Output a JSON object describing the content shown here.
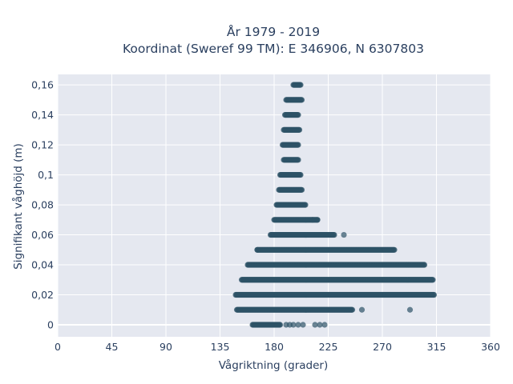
{
  "chart_data": {
    "type": "scatter",
    "title_line1": "År 1979 - 2019",
    "title_line2": "Koordinat (Sweref 99 TM): E 346906, N 6307803",
    "xlabel": "Vågriktning (grader)",
    "ylabel": "Signifikant våghöjd (m)",
    "xlim": [
      0,
      360
    ],
    "ylim": [
      -0.008,
      0.167
    ],
    "x_ticks": [
      0,
      45,
      90,
      135,
      180,
      225,
      270,
      315,
      360
    ],
    "x_tick_labels": [
      "0",
      "45",
      "90",
      "135",
      "180",
      "225",
      "270",
      "315",
      "360"
    ],
    "y_ticks": [
      0,
      0.02,
      0.04,
      0.06,
      0.08,
      0.1,
      0.12,
      0.14,
      0.16
    ],
    "y_tick_labels": [
      "0",
      "0,02",
      "0,04",
      "0,06",
      "0,08",
      "0,1",
      "0,12",
      "0,14",
      "0,16"
    ],
    "grid": true,
    "colors": {
      "plot_bg": "#e5e8f0",
      "grid": "#ffffff",
      "marker": "#2e5266",
      "text": "#2a3f5f"
    },
    "bands": [
      {
        "y": 0.16,
        "x_min": 196,
        "x_max": 202
      },
      {
        "y": 0.15,
        "x_min": 190,
        "x_max": 203
      },
      {
        "y": 0.14,
        "x_min": 189,
        "x_max": 200
      },
      {
        "y": 0.13,
        "x_min": 188,
        "x_max": 201
      },
      {
        "y": 0.12,
        "x_min": 187,
        "x_max": 200
      },
      {
        "y": 0.11,
        "x_min": 188,
        "x_max": 200
      },
      {
        "y": 0.1,
        "x_min": 185,
        "x_max": 202
      },
      {
        "y": 0.09,
        "x_min": 184,
        "x_max": 203
      },
      {
        "y": 0.08,
        "x_min": 182,
        "x_max": 206
      },
      {
        "y": 0.07,
        "x_min": 180,
        "x_max": 216
      },
      {
        "y": 0.06,
        "x_min": 177,
        "x_max": 230
      },
      {
        "y": 0.05,
        "x_min": 166,
        "x_max": 280
      },
      {
        "y": 0.04,
        "x_min": 158,
        "x_max": 305
      },
      {
        "y": 0.03,
        "x_min": 153,
        "x_max": 312
      },
      {
        "y": 0.02,
        "x_min": 148,
        "x_max": 313
      },
      {
        "y": 0.01,
        "x_min": 149,
        "x_max": 245
      },
      {
        "y": 0.0,
        "x_min": 162,
        "x_max": 185
      }
    ],
    "outliers": [
      {
        "x": 212,
        "y": 0.07
      },
      {
        "x": 216,
        "y": 0.07
      },
      {
        "x": 238,
        "y": 0.06
      },
      {
        "x": 166,
        "y": 0.05
      },
      {
        "x": 253,
        "y": 0.01
      },
      {
        "x": 293,
        "y": 0.01
      },
      {
        "x": 190,
        "y": 0.0
      },
      {
        "x": 193,
        "y": 0.0
      },
      {
        "x": 196,
        "y": 0.0
      },
      {
        "x": 200,
        "y": 0.0
      },
      {
        "x": 204,
        "y": 0.0
      },
      {
        "x": 214,
        "y": 0.0
      },
      {
        "x": 218,
        "y": 0.0
      },
      {
        "x": 222,
        "y": 0.0
      }
    ]
  }
}
